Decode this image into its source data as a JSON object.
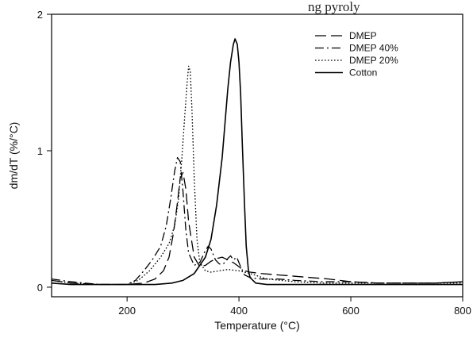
{
  "header_fragment": "ng pyroly",
  "chart_data": {
    "type": "line",
    "title": "",
    "xlabel": "Temperature (°C)",
    "ylabel": "dm/dT (%/°C)",
    "xlim": [
      65,
      800
    ],
    "ylim": [
      -0.07,
      2.0
    ],
    "x_ticks": [
      200,
      400,
      600,
      800
    ],
    "y_ticks": [
      0,
      1,
      2
    ],
    "x_tick_labels": [
      "200",
      "400",
      "600",
      "800"
    ],
    "y_tick_labels": [
      "0",
      "1",
      "2"
    ],
    "grid": false,
    "legend_position": "top-right",
    "series": [
      {
        "name": "DMEP",
        "dash": "dashed",
        "x": [
          65,
          100,
          150,
          200,
          230,
          250,
          265,
          275,
          283,
          290,
          295,
          300,
          305,
          310,
          320,
          330,
          340,
          350,
          360,
          370,
          380,
          390,
          400,
          410,
          420,
          440,
          470,
          500,
          530,
          560,
          600,
          650,
          700,
          750,
          800
        ],
        "y": [
          0.05,
          0.03,
          0.02,
          0.02,
          0.03,
          0.06,
          0.12,
          0.22,
          0.4,
          0.62,
          0.8,
          0.84,
          0.72,
          0.48,
          0.22,
          0.15,
          0.16,
          0.19,
          0.21,
          0.22,
          0.2,
          0.18,
          0.15,
          0.12,
          0.11,
          0.1,
          0.09,
          0.08,
          0.07,
          0.06,
          0.04,
          0.03,
          0.03,
          0.03,
          0.04
        ]
      },
      {
        "name": "DMEP 40%",
        "dash": "dashdot",
        "x": [
          65,
          100,
          150,
          200,
          215,
          230,
          245,
          260,
          270,
          278,
          285,
          290,
          295,
          300,
          305,
          310,
          320,
          330,
          340,
          345,
          350,
          358,
          365,
          372,
          380,
          385,
          390,
          396,
          402,
          410,
          420,
          440,
          470,
          500,
          550,
          600,
          650,
          700,
          750,
          800
        ],
        "y": [
          0.06,
          0.04,
          0.02,
          0.02,
          0.05,
          0.12,
          0.2,
          0.3,
          0.45,
          0.65,
          0.85,
          0.95,
          0.92,
          0.7,
          0.42,
          0.25,
          0.16,
          0.18,
          0.27,
          0.3,
          0.28,
          0.2,
          0.17,
          0.17,
          0.21,
          0.23,
          0.2,
          0.22,
          0.16,
          0.09,
          0.07,
          0.06,
          0.06,
          0.05,
          0.04,
          0.04,
          0.03,
          0.03,
          0.03,
          0.04
        ]
      },
      {
        "name": "DMEP 20%",
        "dash": "dotted",
        "x": [
          65,
          100,
          150,
          200,
          220,
          240,
          260,
          275,
          285,
          292,
          298,
          303,
          307,
          310,
          313,
          316,
          320,
          325,
          330,
          340,
          350,
          365,
          380,
          400,
          420,
          450,
          500,
          550,
          600,
          650,
          700,
          750,
          800
        ],
        "y": [
          0.05,
          0.03,
          0.02,
          0.02,
          0.05,
          0.12,
          0.22,
          0.32,
          0.45,
          0.65,
          0.95,
          1.25,
          1.48,
          1.62,
          1.58,
          1.3,
          0.8,
          0.35,
          0.18,
          0.12,
          0.11,
          0.12,
          0.13,
          0.12,
          0.1,
          0.06,
          0.04,
          0.03,
          0.03,
          0.03,
          0.03,
          0.03,
          0.03
        ]
      },
      {
        "name": "Cotton",
        "dash": "solid",
        "x": [
          65,
          100,
          150,
          200,
          250,
          280,
          300,
          320,
          340,
          350,
          360,
          370,
          375,
          380,
          385,
          390,
          393,
          397,
          400,
          403,
          406,
          410,
          413,
          417,
          420,
          430,
          450,
          500,
          550,
          600,
          650,
          700,
          750,
          800
        ],
        "y": [
          0.03,
          0.02,
          0.02,
          0.02,
          0.02,
          0.03,
          0.05,
          0.1,
          0.22,
          0.35,
          0.6,
          0.95,
          1.2,
          1.45,
          1.65,
          1.78,
          1.82,
          1.78,
          1.65,
          1.42,
          1.05,
          0.6,
          0.3,
          0.12,
          0.07,
          0.03,
          0.02,
          0.02,
          0.02,
          0.02,
          0.02,
          0.02,
          0.02,
          0.02
        ]
      }
    ]
  }
}
